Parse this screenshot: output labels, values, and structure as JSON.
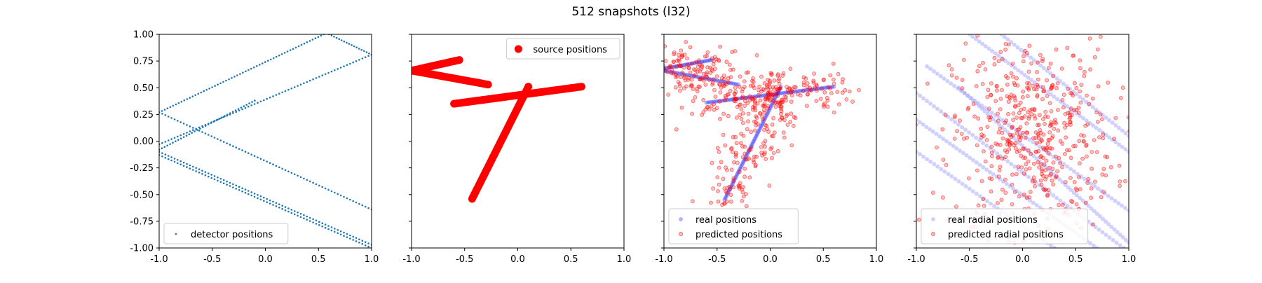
{
  "figure_title": "512 snapshots (l32)",
  "colors": {
    "detector": "#1f77b4",
    "source": "#ff0000",
    "real": "#0000ff",
    "predicted": "#ff0000",
    "real_radial": "#9999ff"
  },
  "chart_data": [
    {
      "type": "scatter",
      "panel": "detectors",
      "xlim": [
        -1.0,
        1.0
      ],
      "ylim": [
        -1.0,
        1.0
      ],
      "xticks": [
        "-1.0",
        "-0.5",
        "0.0",
        "0.5",
        "1.0"
      ],
      "yticks": [
        "1.00",
        "0.75",
        "0.50",
        "0.25",
        "0.00",
        "-0.25",
        "-0.50",
        "-0.75",
        "-1.00"
      ],
      "legend_position": "lower-left",
      "series": [
        {
          "name": "detector positions",
          "marker": "dot",
          "segments": [
            {
              "from": [
                -1.0,
                0.27
              ],
              "to": [
                0.55,
                1.0
              ],
              "n": 60
            },
            {
              "from": [
                0.6,
                1.0
              ],
              "to": [
                1.0,
                0.81
              ],
              "n": 18
            },
            {
              "from": [
                -1.0,
                -0.03
              ],
              "to": [
                1.0,
                0.81
              ],
              "n": 70
            },
            {
              "from": [
                -1.0,
                0.27
              ],
              "to": [
                1.0,
                -0.64
              ],
              "n": 70
            },
            {
              "from": [
                -1.0,
                -0.08
              ],
              "to": [
                -0.1,
                0.38
              ],
              "n": 36
            },
            {
              "from": [
                -1.0,
                -0.1
              ],
              "to": [
                1.0,
                -0.97
              ],
              "n": 70
            },
            {
              "from": [
                -1.0,
                -0.13
              ],
              "to": [
                1.0,
                -1.0
              ],
              "n": 70
            }
          ]
        }
      ]
    },
    {
      "type": "scatter",
      "panel": "sources",
      "xlim": [
        -1.0,
        1.0
      ],
      "ylim": [
        -1.0,
        1.0
      ],
      "xticks": [
        "-1.0",
        "-0.5",
        "0.0",
        "0.5",
        "1.0"
      ],
      "legend_position": "top-right",
      "series": [
        {
          "name": "source positions",
          "marker": "large-dot",
          "segments": [
            {
              "from": [
                -1.0,
                0.66
              ],
              "to": [
                -0.55,
                0.76
              ],
              "n": 28
            },
            {
              "from": [
                -1.0,
                0.66
              ],
              "to": [
                -0.28,
                0.53
              ],
              "n": 40
            },
            {
              "from": [
                -0.6,
                0.35
              ],
              "to": [
                0.6,
                0.51
              ],
              "n": 70
            },
            {
              "from": [
                -0.43,
                -0.54
              ],
              "to": [
                0.1,
                0.51
              ],
              "n": 70
            }
          ]
        }
      ]
    },
    {
      "type": "scatter",
      "panel": "predictions",
      "xlim": [
        -1.0,
        1.0
      ],
      "ylim": [
        -1.0,
        1.0
      ],
      "xticks": [
        "-1.0",
        "-0.5",
        "0.0",
        "0.5",
        "1.0"
      ],
      "legend_position": "lower-left",
      "series": [
        {
          "name": "real positions",
          "marker": "faint-dot",
          "segments": [
            {
              "from": [
                -1.0,
                0.68
              ],
              "to": [
                -0.55,
                0.76
              ],
              "n": 30
            },
            {
              "from": [
                -1.0,
                0.66
              ],
              "to": [
                -0.3,
                0.53
              ],
              "n": 40
            },
            {
              "from": [
                -0.6,
                0.36
              ],
              "to": [
                0.6,
                0.51
              ],
              "n": 70
            },
            {
              "from": [
                -0.43,
                -0.55
              ],
              "to": [
                0.1,
                0.51
              ],
              "n": 70
            }
          ]
        },
        {
          "name": "predicted positions",
          "marker": "small-dot",
          "scatter_around": "real positions",
          "spread": [
            0.14,
            0.1
          ],
          "count": 512
        }
      ]
    },
    {
      "type": "scatter",
      "panel": "radial",
      "xlim": [
        -1.0,
        1.0
      ],
      "ylim": [
        -1.0,
        1.0
      ],
      "xticks": [
        "-1.0",
        "-0.5",
        "0.0",
        "0.5",
        "1.0"
      ],
      "legend_position": "lower-left",
      "series": [
        {
          "name": "real radial positions",
          "marker": "faint-dot",
          "segments": [
            {
              "from": [
                -1.0,
                0.45
              ],
              "to": [
                0.95,
                -1.0
              ],
              "n": 60
            },
            {
              "from": [
                -0.9,
                0.7
              ],
              "to": [
                1.0,
                -0.65
              ],
              "n": 60
            },
            {
              "from": [
                -0.5,
                1.0
              ],
              "to": [
                1.0,
                -0.1
              ],
              "n": 50
            },
            {
              "from": [
                -1.0,
                0.2
              ],
              "to": [
                0.7,
                -1.0
              ],
              "n": 55
            },
            {
              "from": [
                -0.6,
                0.5
              ],
              "to": [
                1.0,
                -0.95
              ],
              "n": 60
            },
            {
              "from": [
                -0.2,
                1.0
              ],
              "to": [
                1.0,
                0.05
              ],
              "n": 40
            },
            {
              "from": [
                -1.0,
                -0.1
              ],
              "to": [
                0.3,
                -1.0
              ],
              "n": 40
            }
          ]
        },
        {
          "name": "predicted radial positions",
          "marker": "small-dot",
          "center": [
            0.1,
            0.05
          ],
          "spread": [
            0.38,
            0.45
          ],
          "count": 512
        }
      ]
    }
  ]
}
